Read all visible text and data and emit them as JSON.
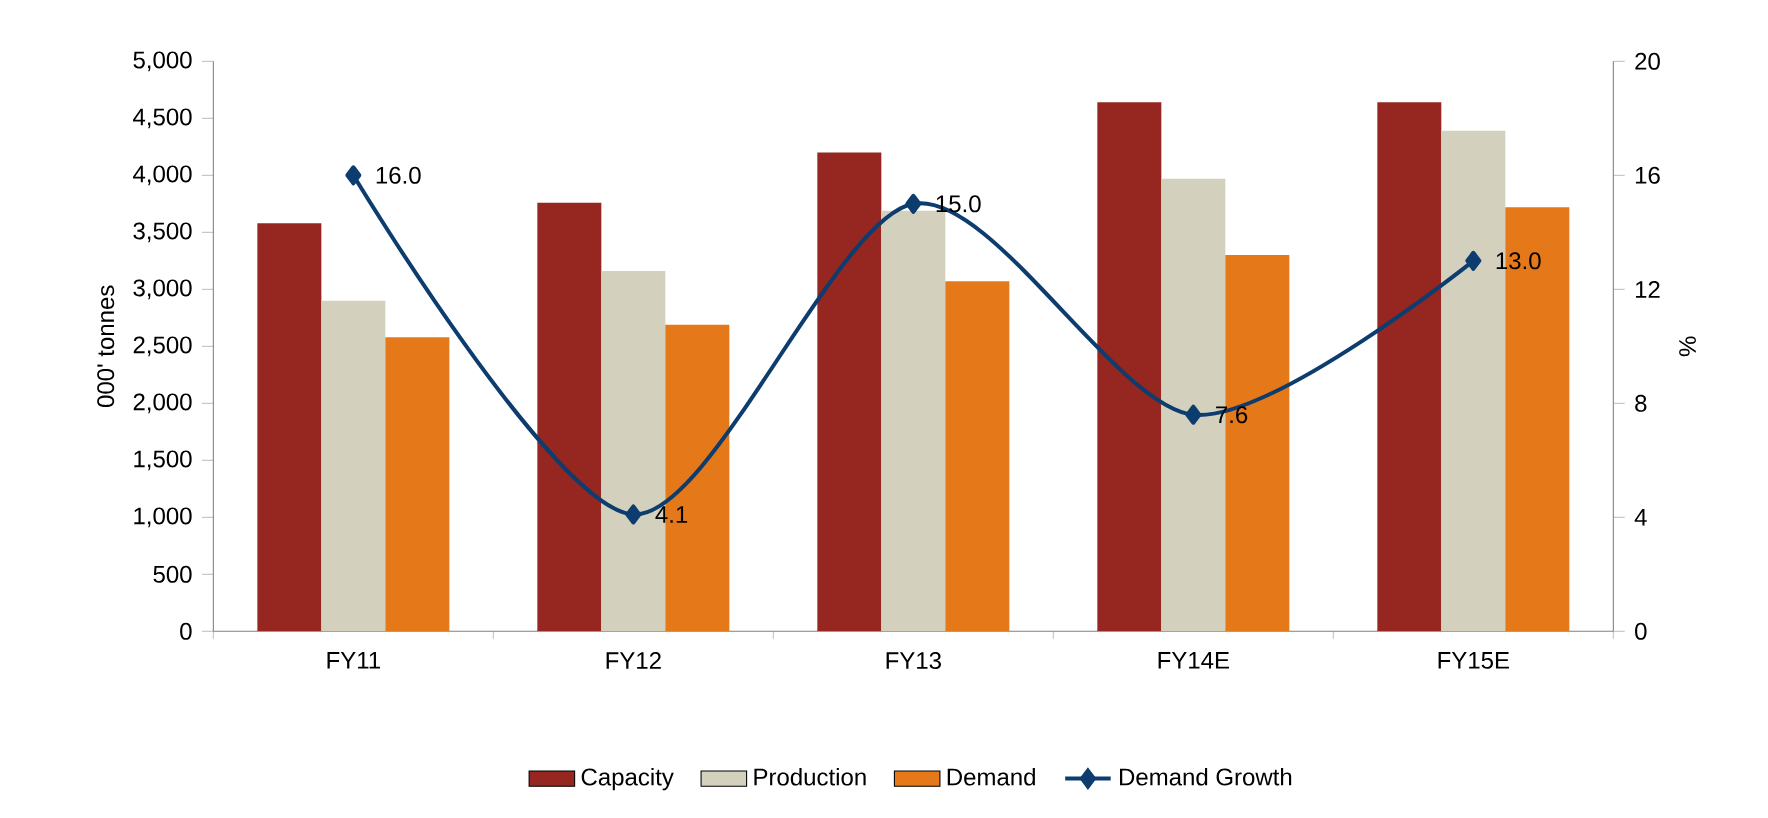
{
  "chart_data": {
    "type": "bar",
    "categories": [
      "FY11",
      "FY12",
      "FY13",
      "FY14E",
      "FY15E"
    ],
    "ylabel": "000' tonnes",
    "y2label": "%",
    "ylim": [
      0,
      5000
    ],
    "yticks": [
      {
        "value": 0,
        "label": "0"
      },
      {
        "value": 500,
        "label": "500"
      },
      {
        "value": 1000,
        "label": "1,000"
      },
      {
        "value": 1500,
        "label": "1,500"
      },
      {
        "value": 2000,
        "label": "2,000"
      },
      {
        "value": 2500,
        "label": "2,500"
      },
      {
        "value": 3000,
        "label": "3,000"
      },
      {
        "value": 3500,
        "label": "3,500"
      },
      {
        "value": 4000,
        "label": "4,000"
      },
      {
        "value": 4500,
        "label": "4,500"
      },
      {
        "value": 5000,
        "label": "5,000"
      }
    ],
    "y2lim": [
      0,
      20
    ],
    "y2ticks": [
      0,
      4,
      8,
      12,
      16,
      20
    ],
    "legend": "bottom",
    "grid": false,
    "series": [
      {
        "name": "Capacity",
        "color": "#952720",
        "values": [
          3580,
          3760,
          4200,
          4640,
          4640
        ]
      },
      {
        "name": "Production",
        "color": "#d3d0bd",
        "values": [
          2900,
          3160,
          3690,
          3970,
          4390
        ]
      },
      {
        "name": "Demand",
        "color": "#e57818",
        "values": [
          2580,
          2690,
          3070,
          3300,
          3720
        ]
      },
      {
        "name": "Demand Growth",
        "type": "line",
        "axis": "y2",
        "color": "#0d3c6e",
        "marker": "diamond",
        "line_style": "solid",
        "values": [
          16.0,
          4.1,
          15.0,
          7.6,
          13.0
        ],
        "value_labels": [
          "16.0",
          "4.1",
          "15.0",
          "7.6",
          "13.0"
        ]
      }
    ]
  }
}
